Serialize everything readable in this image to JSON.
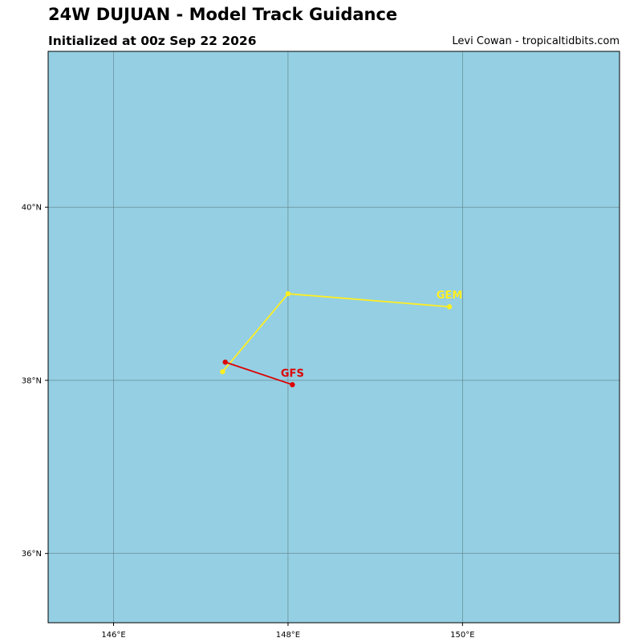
{
  "header": {
    "title": "24W DUJUAN - Model Track Guidance",
    "subtitle": "Initialized at 00z Sep 22 2026",
    "credit": "Levi Cowan - tropicaltidbits.com"
  },
  "map": {
    "ocean_color": "#94cfe3",
    "grid_color": "#5f7f86",
    "lon_range": [
      145.25,
      151.8
    ],
    "lat_range": [
      35.2,
      41.8
    ],
    "lon_ticks": [
      {
        "value": 146,
        "label": "146°E"
      },
      {
        "value": 148,
        "label": "148°E"
      },
      {
        "value": 150,
        "label": "150°E"
      }
    ],
    "lat_ticks": [
      {
        "value": 40,
        "label": "40°N"
      },
      {
        "value": 38,
        "label": "38°N"
      },
      {
        "value": 36,
        "label": "36°N"
      }
    ]
  },
  "tracks": [
    {
      "model": "GEM",
      "color": "#ffee22",
      "points": [
        [
          147.25,
          38.1
        ],
        [
          148.0,
          39.0
        ],
        [
          149.85,
          38.85
        ]
      ]
    },
    {
      "model": "GFS",
      "color": "#dd0000",
      "points": [
        [
          147.28,
          38.21
        ],
        [
          148.05,
          37.95
        ]
      ]
    }
  ]
}
